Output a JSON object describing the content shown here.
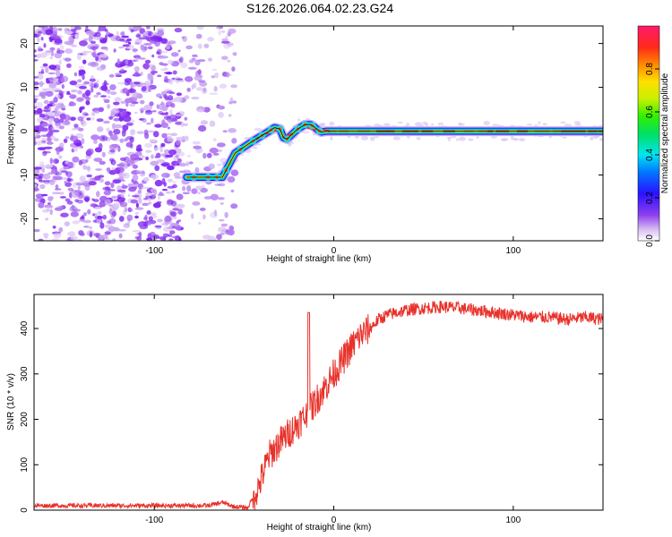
{
  "figure": {
    "title": "S126.2026.064.02.23.G24"
  },
  "chart_data": [
    {
      "type": "heatmap",
      "name": "spectrogram",
      "xlabel": "Height of straight line (km)",
      "ylabel": "Frequency (Hz)",
      "xlim": [
        -167,
        150
      ],
      "ylim": [
        -25,
        24
      ],
      "xticks": [
        -100,
        0,
        100
      ],
      "yticks": [
        -20,
        -10,
        0,
        10,
        20
      ],
      "tone_track": {
        "x": [
          -82,
          -62,
          -55,
          -46,
          -40,
          -36,
          -33,
          -30,
          -28,
          -26,
          -24,
          -20,
          -16,
          -13,
          -11,
          -9,
          -7,
          -4,
          0,
          150
        ],
        "y": [
          -10.5,
          -10.5,
          -5,
          -2.5,
          -1,
          0,
          0.8,
          0.5,
          -1.5,
          -1.8,
          -1,
          0.5,
          1.5,
          1.5,
          1,
          0.3,
          -0.2,
          0,
          0,
          0
        ]
      },
      "noise_region_x": [
        -167,
        -55
      ],
      "colorbar": {
        "label": "Normalized spectral amplitude",
        "range": [
          0,
          1
        ],
        "ticks": [
          0.0,
          0.2,
          0.4,
          0.6,
          0.8
        ]
      }
    },
    {
      "type": "line",
      "name": "snr",
      "xlabel": "Height of straight line (km)",
      "ylabel": "SNR (10 * v/v)",
      "xlim": [
        -167,
        150
      ],
      "ylim": [
        0,
        475
      ],
      "xticks": [
        -100,
        0,
        100
      ],
      "yticks": [
        0,
        100,
        200,
        300,
        400
      ],
      "color": "#e8312a",
      "trend": {
        "x": [
          -167,
          -70,
          -62,
          -56,
          -48,
          -42,
          -36,
          -30,
          -25,
          -20,
          -15,
          -10,
          -5,
          0,
          5,
          10,
          15,
          20,
          25,
          30,
          40,
          50,
          60,
          70,
          80,
          90,
          100,
          110,
          120,
          130,
          140,
          150
        ],
        "y": [
          10,
          10,
          17,
          8,
          5,
          50,
          120,
          150,
          170,
          190,
          210,
          240,
          270,
          300,
          330,
          360,
          385,
          400,
          420,
          430,
          440,
          445,
          448,
          445,
          440,
          435,
          430,
          425,
          425,
          420,
          425,
          420
        ]
      },
      "spike": {
        "x": -14,
        "y": 435
      }
    }
  ]
}
